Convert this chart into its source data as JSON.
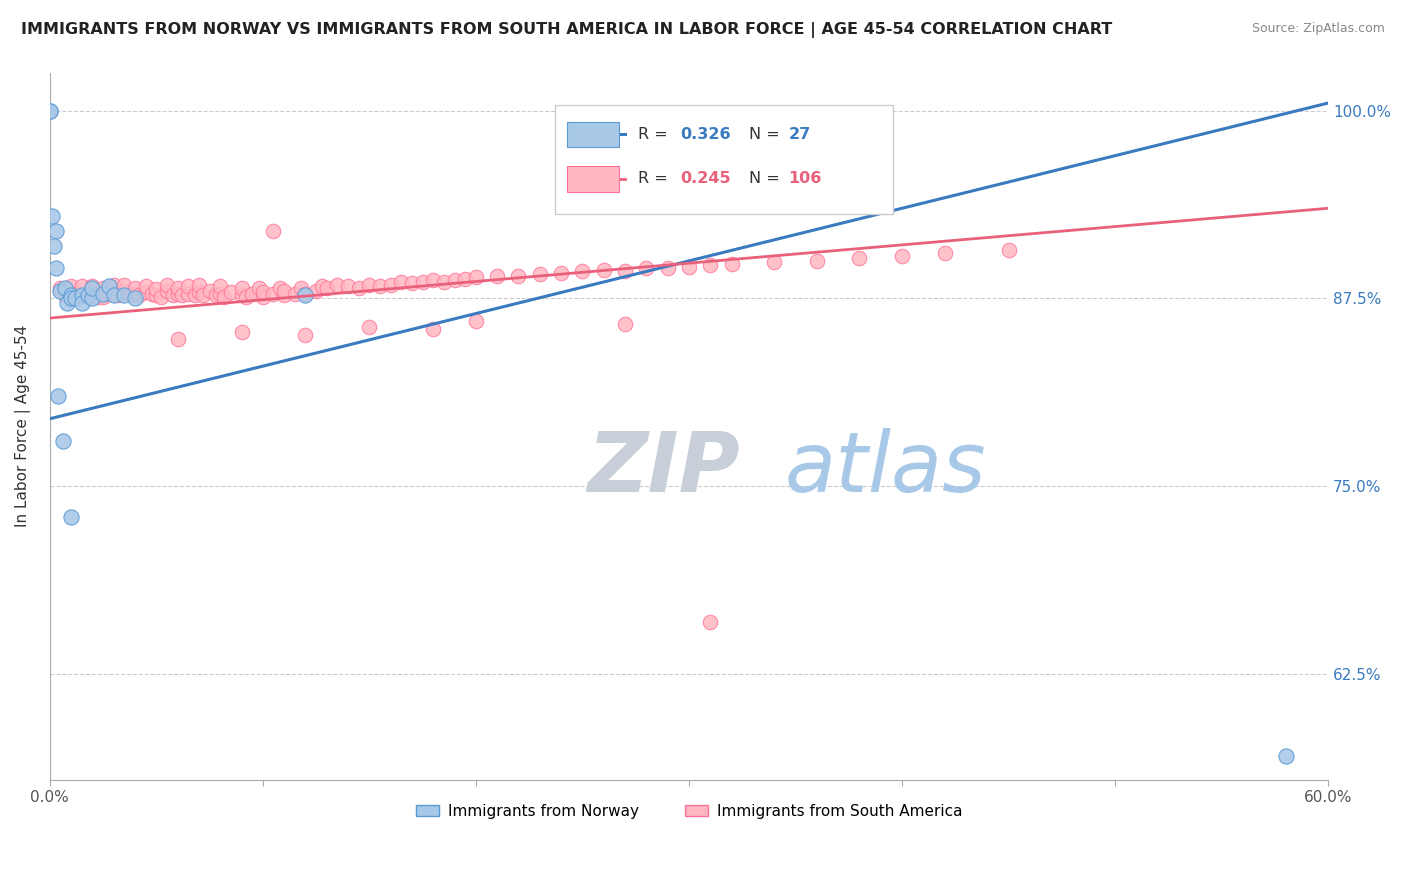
{
  "title": "IMMIGRANTS FROM NORWAY VS IMMIGRANTS FROM SOUTH AMERICA IN LABOR FORCE | AGE 45-54 CORRELATION CHART",
  "source": "Source: ZipAtlas.com",
  "ylabel": "In Labor Force | Age 45-54",
  "xlim": [
    0.0,
    0.6
  ],
  "ylim": [
    0.555,
    1.025
  ],
  "norway_color": "#a8c8e8",
  "norway_edge": "#5b9bd5",
  "south_america_color": "#ffb6c1",
  "south_america_edge": "#ff7096",
  "norway_line_color": "#3a7abf",
  "sa_line_color": "#e8607a",
  "norway_R": 0.326,
  "norway_N": 27,
  "south_america_R": 0.245,
  "south_america_N": 106,
  "legend_label_norway": "Immigrants from Norway",
  "legend_label_sa": "Immigrants from South America",
  "watermark_zip": "ZIP",
  "watermark_atlas": "atlas",
  "grid_color": "#cccccc",
  "right_tick_color": "#3a7abf",
  "norway_trend_x0": 0.0,
  "norway_trend_y0": 0.795,
  "norway_trend_x1": 0.6,
  "norway_trend_y1": 1.005,
  "sa_trend_x0": 0.0,
  "sa_trend_y0": 0.862,
  "sa_trend_x1": 0.6,
  "sa_trend_y1": 0.935,
  "norway_x": [
    0.003,
    0.003,
    0.005,
    0.007,
    0.008,
    0.01,
    0.01,
    0.012,
    0.015,
    0.015,
    0.018,
    0.02,
    0.02,
    0.025,
    0.028,
    0.03,
    0.035,
    0.04,
    0.0,
    0.0,
    0.001,
    0.002,
    0.004,
    0.006,
    0.12,
    0.58,
    0.01
  ],
  "norway_y": [
    0.92,
    0.895,
    0.88,
    0.882,
    0.872,
    0.877,
    0.875,
    0.875,
    0.877,
    0.872,
    0.877,
    0.875,
    0.882,
    0.878,
    0.883,
    0.877,
    0.877,
    0.875,
    1.0,
    1.0,
    0.93,
    0.91,
    0.81,
    0.78,
    0.877,
    0.571,
    0.73
  ],
  "sa_x": [
    0.005,
    0.007,
    0.008,
    0.01,
    0.01,
    0.012,
    0.015,
    0.015,
    0.018,
    0.02,
    0.02,
    0.022,
    0.025,
    0.025,
    0.028,
    0.03,
    0.03,
    0.032,
    0.035,
    0.035,
    0.038,
    0.04,
    0.04,
    0.042,
    0.045,
    0.045,
    0.048,
    0.05,
    0.05,
    0.052,
    0.055,
    0.055,
    0.058,
    0.06,
    0.06,
    0.062,
    0.065,
    0.065,
    0.068,
    0.07,
    0.07,
    0.072,
    0.075,
    0.078,
    0.08,
    0.08,
    0.082,
    0.085,
    0.09,
    0.09,
    0.092,
    0.095,
    0.098,
    0.1,
    0.1,
    0.105,
    0.108,
    0.11,
    0.11,
    0.115,
    0.118,
    0.12,
    0.125,
    0.128,
    0.13,
    0.135,
    0.14,
    0.145,
    0.15,
    0.155,
    0.16,
    0.165,
    0.17,
    0.175,
    0.18,
    0.185,
    0.19,
    0.195,
    0.2,
    0.21,
    0.22,
    0.23,
    0.24,
    0.25,
    0.26,
    0.27,
    0.28,
    0.29,
    0.3,
    0.31,
    0.32,
    0.34,
    0.36,
    0.38,
    0.4,
    0.42,
    0.45,
    0.2,
    0.27,
    0.15,
    0.18,
    0.09,
    0.12,
    0.06,
    0.105,
    0.31
  ],
  "sa_y": [
    0.882,
    0.877,
    0.88,
    0.875,
    0.883,
    0.878,
    0.877,
    0.883,
    0.876,
    0.878,
    0.883,
    0.876,
    0.882,
    0.876,
    0.878,
    0.879,
    0.884,
    0.877,
    0.88,
    0.884,
    0.877,
    0.878,
    0.882,
    0.877,
    0.879,
    0.883,
    0.878,
    0.877,
    0.881,
    0.876,
    0.88,
    0.884,
    0.877,
    0.878,
    0.882,
    0.877,
    0.878,
    0.883,
    0.877,
    0.879,
    0.884,
    0.877,
    0.88,
    0.877,
    0.878,
    0.883,
    0.876,
    0.879,
    0.877,
    0.882,
    0.876,
    0.878,
    0.882,
    0.876,
    0.879,
    0.878,
    0.882,
    0.877,
    0.88,
    0.878,
    0.882,
    0.878,
    0.88,
    0.883,
    0.882,
    0.884,
    0.883,
    0.882,
    0.884,
    0.883,
    0.884,
    0.886,
    0.885,
    0.886,
    0.887,
    0.886,
    0.887,
    0.888,
    0.889,
    0.89,
    0.89,
    0.891,
    0.892,
    0.893,
    0.894,
    0.893,
    0.895,
    0.895,
    0.896,
    0.897,
    0.898,
    0.899,
    0.9,
    0.902,
    0.903,
    0.905,
    0.907,
    0.86,
    0.858,
    0.856,
    0.855,
    0.853,
    0.851,
    0.848,
    0.92,
    0.66
  ]
}
